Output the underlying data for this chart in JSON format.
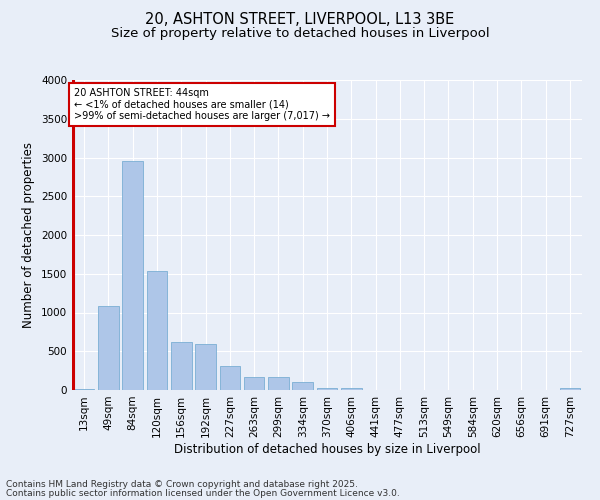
{
  "title1": "20, ASHTON STREET, LIVERPOOL, L13 3BE",
  "title2": "Size of property relative to detached houses in Liverpool",
  "xlabel": "Distribution of detached houses by size in Liverpool",
  "ylabel": "Number of detached properties",
  "categories": [
    "13sqm",
    "49sqm",
    "84sqm",
    "120sqm",
    "156sqm",
    "192sqm",
    "227sqm",
    "263sqm",
    "299sqm",
    "334sqm",
    "370sqm",
    "406sqm",
    "441sqm",
    "477sqm",
    "513sqm",
    "549sqm",
    "584sqm",
    "620sqm",
    "656sqm",
    "691sqm",
    "727sqm"
  ],
  "values": [
    14,
    1080,
    2960,
    1530,
    620,
    600,
    310,
    170,
    165,
    105,
    25,
    25,
    0,
    0,
    0,
    0,
    0,
    0,
    0,
    0,
    30
  ],
  "bar_color": "#aec6e8",
  "bar_edge_color": "#7aafd4",
  "highlight_color": "#cc0000",
  "annotation_text": "20 ASHTON STREET: 44sqm\n← <1% of detached houses are smaller (14)\n>99% of semi-detached houses are larger (7,017) →",
  "ylim": [
    0,
    4000
  ],
  "yticks": [
    0,
    500,
    1000,
    1500,
    2000,
    2500,
    3000,
    3500,
    4000
  ],
  "footnote1": "Contains HM Land Registry data © Crown copyright and database right 2025.",
  "footnote2": "Contains public sector information licensed under the Open Government Licence v3.0.",
  "bg_color": "#e8eef8",
  "plot_bg_color": "#e8eef8",
  "grid_color": "#ffffff",
  "title_fontsize": 10.5,
  "subtitle_fontsize": 9.5,
  "axis_label_fontsize": 8.5,
  "tick_fontsize": 7.5,
  "footnote_fontsize": 6.5
}
